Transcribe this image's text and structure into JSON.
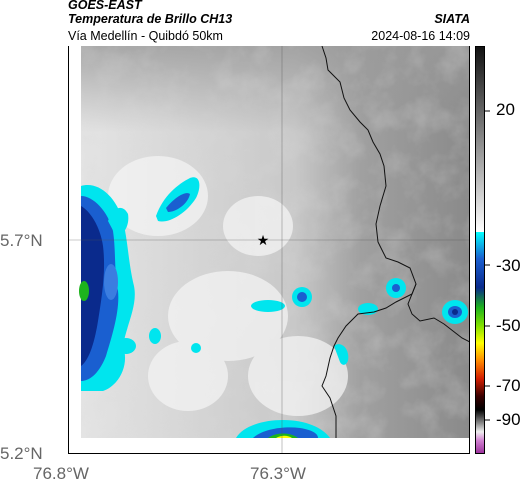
{
  "header": {
    "agency": "GOES-EAST",
    "product": "Temperatura de Brillo CH13",
    "area": "Vía Medellín - Quibdó 50km",
    "source": "SIATA",
    "timestamp": "2024-08-16 14:09"
  },
  "map": {
    "lat_labels": [
      "5.7°N",
      "5.2°N"
    ],
    "lon_labels": [
      "76.8°W",
      "76.3°W"
    ],
    "marker": "star-marker"
  },
  "colorbar": {
    "tick_labels": [
      "20",
      "-30",
      "-50",
      "-70",
      "-90"
    ],
    "colors": {
      "warm": "#ffffff",
      "cold_cyan": "#00ffff",
      "cold_blue": "#0a2a8c",
      "green": "#1db31d",
      "yellow": "#ffff00",
      "red": "#d41e00",
      "black": "#000000",
      "magenta": "#b03fb0"
    }
  }
}
